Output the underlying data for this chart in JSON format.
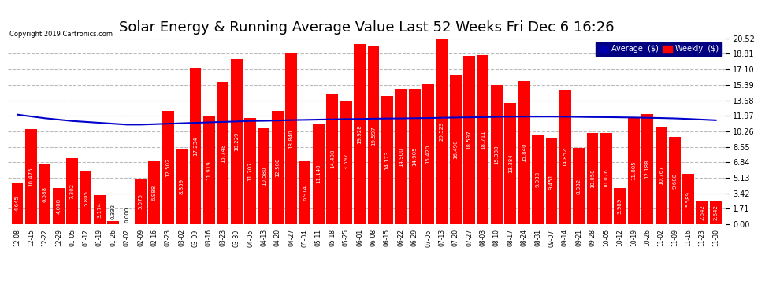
{
  "title": "Solar Energy & Running Average Value Last 52 Weeks Fri Dec 6 16:26",
  "copyright": "Copyright 2019 Cartronics.com",
  "categories": [
    "12-08",
    "12-15",
    "12-22",
    "12-29",
    "01-05",
    "01-12",
    "01-19",
    "01-26",
    "02-02",
    "02-09",
    "02-16",
    "02-23",
    "03-02",
    "03-09",
    "03-16",
    "03-23",
    "03-30",
    "04-06",
    "04-13",
    "04-20",
    "04-27",
    "05-04",
    "05-11",
    "05-18",
    "05-25",
    "06-01",
    "06-08",
    "06-15",
    "06-22",
    "06-29",
    "07-06",
    "07-13",
    "07-20",
    "07-27",
    "08-03",
    "08-10",
    "08-17",
    "08-24",
    "08-31",
    "09-07",
    "09-14",
    "09-21",
    "09-28",
    "10-05",
    "10-12",
    "10-19",
    "10-26",
    "11-02",
    "11-09",
    "11-16",
    "11-23",
    "11-30"
  ],
  "weekly_values": [
    4.645,
    10.475,
    6.588,
    4.008,
    7.302,
    5.805,
    3.174,
    0.332,
    0.0,
    5.075,
    6.988,
    12.502,
    8.359,
    17.234,
    11.919,
    15.748,
    18.229,
    11.707,
    10.58,
    12.508,
    18.84,
    6.914,
    11.14,
    14.408,
    13.597,
    19.928,
    19.597,
    14.173,
    14.9,
    14.905,
    15.42,
    20.523,
    16.49,
    18.597,
    18.711,
    15.338,
    13.384,
    15.84,
    9.933,
    9.451,
    14.852,
    8.382,
    10.058,
    10.076,
    3.989,
    11.805,
    12.188,
    10.767,
    9.608,
    5.589,
    2.642,
    2.642
  ],
  "running_avg": [
    12.1,
    11.9,
    11.7,
    11.55,
    11.4,
    11.3,
    11.2,
    11.1,
    11.0,
    11.0,
    11.05,
    11.1,
    11.15,
    11.2,
    11.25,
    11.3,
    11.35,
    11.4,
    11.42,
    11.45,
    11.5,
    11.52,
    11.55,
    11.58,
    11.6,
    11.62,
    11.65,
    11.67,
    11.68,
    11.7,
    11.72,
    11.75,
    11.78,
    11.8,
    11.82,
    11.85,
    11.87,
    11.88,
    11.88,
    11.88,
    11.87,
    11.85,
    11.83,
    11.82,
    11.8,
    11.78,
    11.75,
    11.72,
    11.68,
    11.62,
    11.55,
    11.48
  ],
  "bar_color": "#FF0000",
  "line_color": "#0000CC",
  "background_color": "#FFFFFF",
  "grid_color": "#AAAAAA",
  "yticks": [
    0.0,
    1.71,
    3.42,
    5.13,
    6.84,
    8.55,
    10.26,
    11.97,
    13.68,
    15.39,
    17.1,
    18.81,
    20.52
  ],
  "legend_avg_color": "#0000AA",
  "legend_weekly_color": "#FF0000",
  "value_fontsize": 5.0,
  "title_fontsize": 13
}
